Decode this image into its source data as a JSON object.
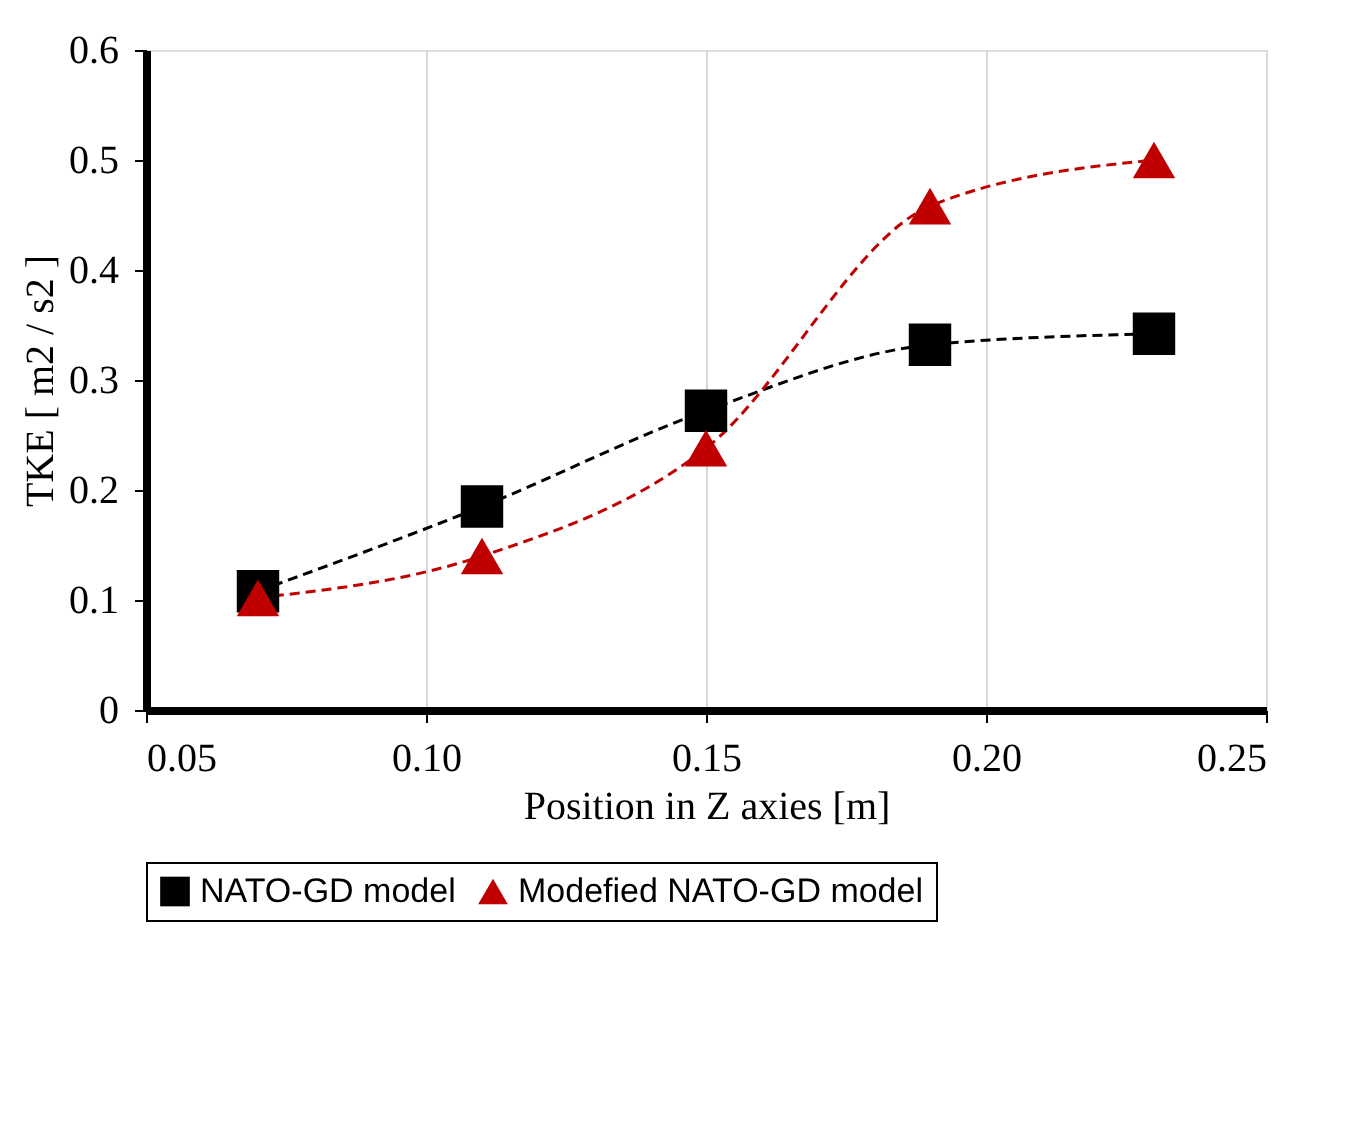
{
  "chart_data": {
    "type": "line",
    "xlabel": "Position in Z axies [m]",
    "ylabel": "TKE [ m2 / s2 ]",
    "xlim": [
      0.05,
      0.25
    ],
    "xticks": [
      {
        "value": 0.05,
        "label": "0.05"
      },
      {
        "value": 0.1,
        "label": "0.10"
      },
      {
        "value": 0.15,
        "label": "0.15"
      },
      {
        "value": 0.2,
        "label": "0.20"
      },
      {
        "value": 0.25,
        "label": "0.25"
      }
    ],
    "ylim": [
      0,
      0.6
    ],
    "yticks": [
      0,
      0.1,
      0.2,
      0.3,
      0.4,
      0.5,
      0.6
    ],
    "x": [
      0.07,
      0.11,
      0.15,
      0.19,
      0.23
    ],
    "series": [
      {
        "name": "NATO-GD model",
        "color": "#000000",
        "marker": "square",
        "values": [
          0.108,
          0.185,
          0.272,
          0.332,
          0.342
        ]
      },
      {
        "name": "Modefied NATO-GD model",
        "color": "#c00000",
        "marker": "triangle",
        "values": [
          0.102,
          0.14,
          0.238,
          0.458,
          0.5
        ]
      }
    ],
    "line_style": "dashed",
    "grid": "x",
    "legend": "bottom"
  }
}
